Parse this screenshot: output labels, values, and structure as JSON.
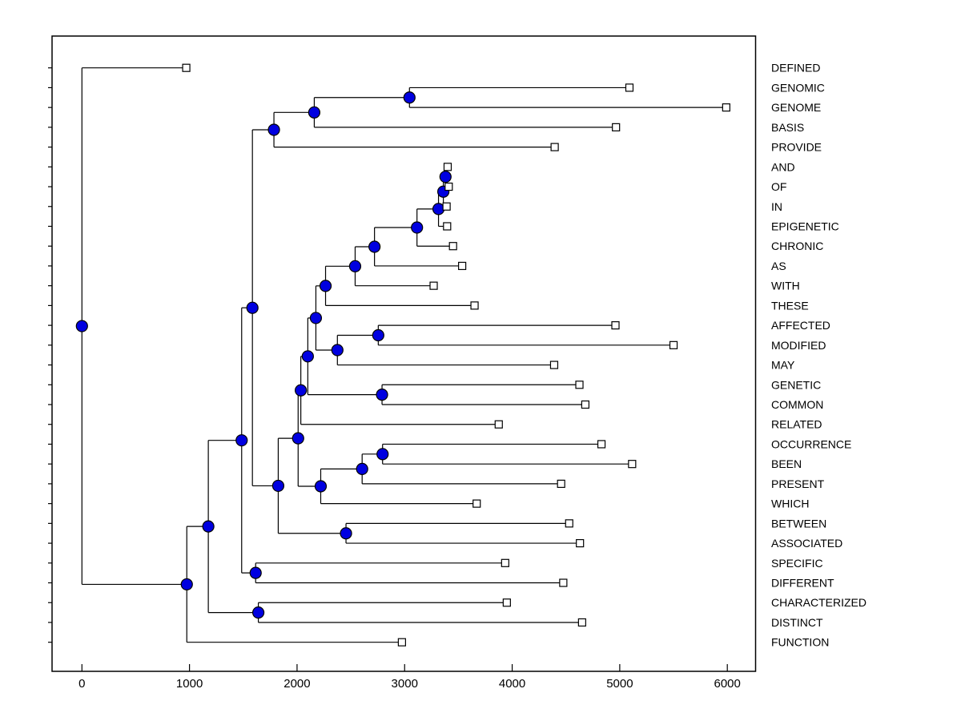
{
  "figure": {
    "background": "#ffffff",
    "border_color": "#000000"
  },
  "chart_data": {
    "type": "dendrogram",
    "orientation": "horizontal-right",
    "title": "",
    "xlabel": "",
    "ylabel": "",
    "legend": null,
    "grid": false,
    "x_ticks": [
      0,
      1000,
      2000,
      3000,
      4000,
      5000,
      6000
    ],
    "x_range": [
      -280,
      6260
    ],
    "leaf_labels_position": "right",
    "leaves": [
      {
        "label": "DEFINED",
        "x": 970
      },
      {
        "label": "GENOMIC",
        "x": 5090
      },
      {
        "label": "GENOME",
        "x": 5990
      },
      {
        "label": "BASIS",
        "x": 4965
      },
      {
        "label": "PROVIDE",
        "x": 4395
      },
      {
        "label": "AND",
        "x": 3400
      },
      {
        "label": "OF",
        "x": 3410
      },
      {
        "label": "IN",
        "x": 3390
      },
      {
        "label": "EPIGENETIC",
        "x": 3395
      },
      {
        "label": "CHRONIC",
        "x": 3450
      },
      {
        "label": "AS",
        "x": 3535
      },
      {
        "label": "WITH",
        "x": 3270
      },
      {
        "label": "THESE",
        "x": 3650
      },
      {
        "label": "AFFECTED",
        "x": 4960
      },
      {
        "label": "MODIFIED",
        "x": 5500
      },
      {
        "label": "MAY",
        "x": 4390
      },
      {
        "label": "GENETIC",
        "x": 4625
      },
      {
        "label": "COMMON",
        "x": 4680
      },
      {
        "label": "RELATED",
        "x": 3875
      },
      {
        "label": "OCCURRENCE",
        "x": 4830
      },
      {
        "label": "BEEN",
        "x": 5115
      },
      {
        "label": "PRESENT",
        "x": 4455
      },
      {
        "label": "WHICH",
        "x": 3670
      },
      {
        "label": "BETWEEN",
        "x": 4530
      },
      {
        "label": "ASSOCIATED",
        "x": 4630
      },
      {
        "label": "SPECIFIC",
        "x": 3935
      },
      {
        "label": "DIFFERENT",
        "x": 4475
      },
      {
        "label": "CHARACTERIZED",
        "x": 3950
      },
      {
        "label": "DISTINCT",
        "x": 4650
      },
      {
        "label": "FUNCTION",
        "x": 2975
      }
    ],
    "nodes": [
      {
        "id": "n_and_of",
        "x": 3380,
        "children": [
          "AND",
          "OF"
        ]
      },
      {
        "id": "n_in",
        "x": 3360,
        "children": [
          "n_and_of",
          "IN"
        ]
      },
      {
        "id": "n_epigenetic",
        "x": 3315,
        "children": [
          "n_in",
          "EPIGENETIC"
        ]
      },
      {
        "id": "n_chronic",
        "x": 3115,
        "children": [
          "n_epigenetic",
          "CHRONIC"
        ]
      },
      {
        "id": "n_as",
        "x": 2720,
        "children": [
          "n_chronic",
          "AS"
        ]
      },
      {
        "id": "n_with",
        "x": 2540,
        "children": [
          "n_as",
          "WITH"
        ]
      },
      {
        "id": "n_these",
        "x": 2265,
        "children": [
          "n_with",
          "THESE"
        ]
      },
      {
        "id": "n_genomic_genome",
        "x": 3045,
        "children": [
          "GENOMIC",
          "GENOME"
        ]
      },
      {
        "id": "n_basis",
        "x": 2160,
        "children": [
          "n_genomic_genome",
          "BASIS"
        ]
      },
      {
        "id": "n_provide",
        "x": 1785,
        "children": [
          "n_basis",
          "PROVIDE"
        ]
      },
      {
        "id": "n_affected_modified",
        "x": 2755,
        "children": [
          "AFFECTED",
          "MODIFIED"
        ]
      },
      {
        "id": "n_may",
        "x": 2375,
        "children": [
          "n_affected_modified",
          "MAY"
        ]
      },
      {
        "id": "n_k",
        "x": 2175,
        "children": [
          "n_these",
          "n_may"
        ]
      },
      {
        "id": "n_genetic_common",
        "x": 2790,
        "children": [
          "GENETIC",
          "COMMON"
        ]
      },
      {
        "id": "n_n",
        "x": 2100,
        "children": [
          "n_k",
          "n_genetic_common"
        ]
      },
      {
        "id": "n_related",
        "x": 2035,
        "children": [
          "n_n",
          "RELATED"
        ]
      },
      {
        "id": "n_occurrence_been",
        "x": 2795,
        "children": [
          "OCCURRENCE",
          "BEEN"
        ]
      },
      {
        "id": "n_present",
        "x": 2605,
        "children": [
          "n_occurrence_been",
          "PRESENT"
        ]
      },
      {
        "id": "n_which",
        "x": 2220,
        "children": [
          "n_present",
          "WHICH"
        ]
      },
      {
        "id": "n_p",
        "x": 2010,
        "children": [
          "n_related",
          "n_which"
        ]
      },
      {
        "id": "n_between_associated",
        "x": 2455,
        "children": [
          "BETWEEN",
          "ASSOCIATED"
        ]
      },
      {
        "id": "n_s",
        "x": 1825,
        "children": [
          "n_p",
          "n_between_associated"
        ]
      },
      {
        "id": "n_i",
        "x": 1585,
        "children": [
          "n_provide",
          "n_s"
        ]
      },
      {
        "id": "n_specific_different",
        "x": 1615,
        "children": [
          "SPECIFIC",
          "DIFFERENT"
        ]
      },
      {
        "id": "n_t",
        "x": 1485,
        "children": [
          "n_i",
          "n_specific_different"
        ]
      },
      {
        "id": "n_char_distinct",
        "x": 1640,
        "children": [
          "CHARACTERIZED",
          "DISTINCT"
        ]
      },
      {
        "id": "n_u",
        "x": 1175,
        "children": [
          "n_t",
          "n_char_distinct"
        ]
      },
      {
        "id": "n_w",
        "x": 975,
        "children": [
          "n_u",
          "FUNCTION"
        ]
      },
      {
        "id": "root",
        "x": 0,
        "children": [
          "DEFINED",
          "n_w"
        ]
      }
    ],
    "styles": {
      "branch_color": "#000000",
      "internal_marker_color": "#0000e0",
      "internal_marker_shape": "circle",
      "leaf_marker_fill": "#ffffff",
      "leaf_marker_shape": "square",
      "marker_edge_color": "#000000"
    }
  }
}
